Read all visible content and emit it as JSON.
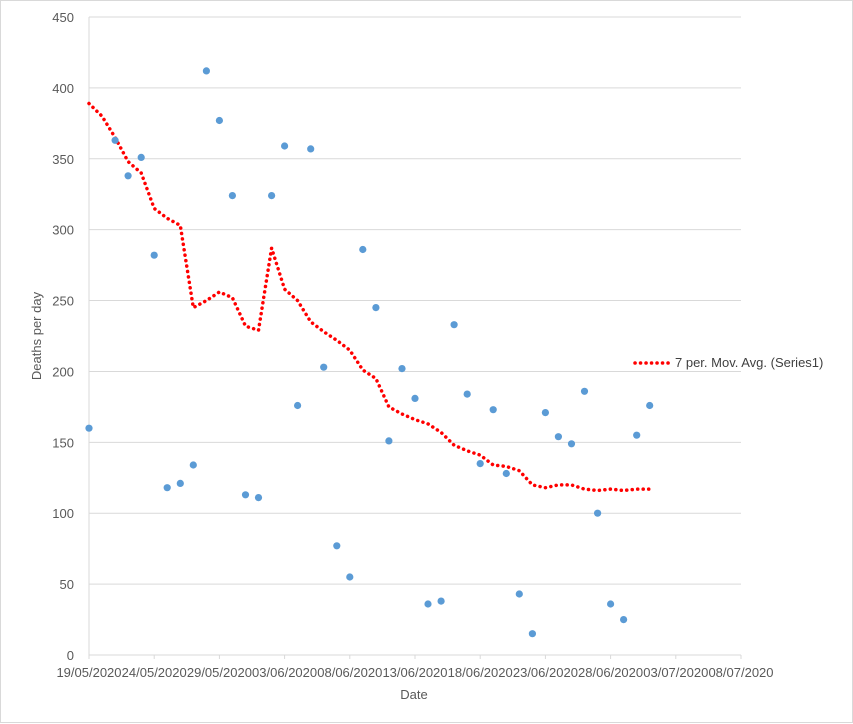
{
  "chart_data": {
    "type": "scatter",
    "title": "",
    "xlabel": "Date",
    "ylabel": "Deaths per day",
    "ylim": [
      0,
      450
    ],
    "y_ticks": [
      "0",
      "50",
      "100",
      "150",
      "200",
      "250",
      "300",
      "350",
      "400",
      "450"
    ],
    "x_ticks": [
      "19/05/2020",
      "24/05/2020",
      "29/05/2020",
      "03/06/2020",
      "08/06/2020",
      "13/06/2020",
      "18/06/2020",
      "23/06/2020",
      "28/06/2020",
      "03/07/2020",
      "08/07/2020"
    ],
    "x_range_days": [
      0,
      50
    ],
    "grid": true,
    "legend": {
      "label": "7 per. Mov. Avg. (Series1)",
      "position": "right"
    },
    "colors": {
      "points": "#5b9bd5",
      "trendline": "#ff0000",
      "grid": "#d9d9d9"
    },
    "series": [
      {
        "name": "Series1",
        "x_day_offset": [
          0,
          2,
          3,
          4,
          5,
          6,
          7,
          8,
          9,
          10,
          11,
          12,
          13,
          14,
          15,
          16,
          17,
          18,
          19,
          20,
          21,
          22,
          23,
          24,
          25,
          26,
          27,
          28,
          29,
          30,
          31,
          32,
          33,
          34,
          35,
          36,
          37,
          38,
          39,
          40,
          41,
          42,
          43
        ],
        "values": [
          160,
          363,
          338,
          351,
          282,
          118,
          121,
          134,
          412,
          377,
          324,
          113,
          111,
          324,
          359,
          176,
          357,
          203,
          77,
          55,
          286,
          245,
          151,
          202,
          181,
          36,
          38,
          233,
          184,
          135,
          173,
          128,
          43,
          15,
          171,
          154,
          149,
          186,
          100,
          36,
          25,
          155,
          176
        ]
      }
    ],
    "trendline": {
      "name": "7 per. Mov. Avg. (Series1)",
      "x_day_offset": [
        0,
        1,
        2,
        3,
        4,
        5,
        6,
        7,
        8,
        9,
        10,
        11,
        12,
        13,
        14,
        15,
        16,
        17,
        18,
        19,
        20,
        21,
        22,
        23,
        24,
        25,
        26,
        27,
        28,
        29,
        30,
        31,
        32,
        33,
        34,
        35,
        36,
        37,
        38,
        39,
        40,
        41,
        42,
        43
      ],
      "values": [
        389,
        380,
        365,
        348,
        340,
        315,
        308,
        303,
        245,
        250,
        256,
        252,
        232,
        229,
        287,
        258,
        250,
        235,
        228,
        222,
        215,
        201,
        195,
        175,
        170,
        166,
        163,
        157,
        148,
        144,
        141,
        134,
        133,
        130,
        120,
        118,
        120,
        120,
        117,
        116,
        117,
        116,
        117,
        117
      ]
    }
  }
}
